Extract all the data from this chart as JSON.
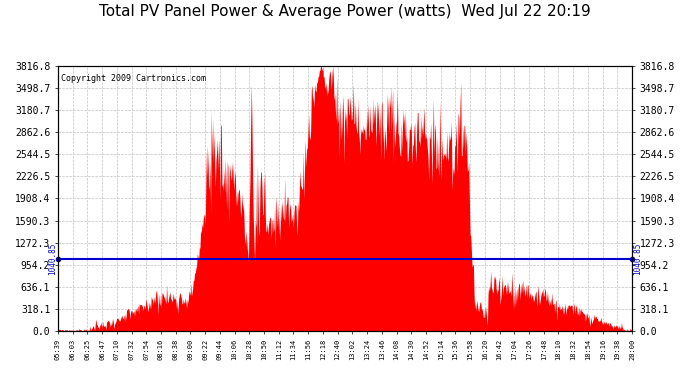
{
  "title": "Total PV Panel Power & Average Power (watts)  Wed Jul 22 20:19",
  "copyright": "Copyright 2009 Cartronics.com",
  "average_power": 1040.85,
  "y_ticks": [
    0.0,
    318.1,
    636.1,
    954.2,
    1272.3,
    1590.3,
    1908.4,
    2226.5,
    2544.5,
    2862.6,
    3180.7,
    3498.7,
    3816.8
  ],
  "y_min": 0.0,
  "y_max": 3816.8,
  "x_labels": [
    "05:39",
    "06:03",
    "06:25",
    "06:47",
    "07:10",
    "07:32",
    "07:54",
    "08:16",
    "08:38",
    "09:00",
    "09:22",
    "09:44",
    "10:06",
    "10:28",
    "10:50",
    "11:12",
    "11:34",
    "11:56",
    "12:18",
    "12:40",
    "13:02",
    "13:24",
    "13:46",
    "14:08",
    "14:30",
    "14:52",
    "15:14",
    "15:36",
    "15:58",
    "16:20",
    "16:42",
    "17:04",
    "17:26",
    "17:48",
    "18:10",
    "18:32",
    "18:54",
    "19:16",
    "19:38",
    "20:00"
  ],
  "fill_color": "#FF0000",
  "avg_line_color": "#0000CC",
  "background_color": "#FFFFFF",
  "grid_color": "#BBBBBB",
  "avg_label_color": "#0000CC",
  "title_fontsize": 11,
  "copyright_fontsize": 6,
  "ytick_fontsize": 7,
  "xtick_fontsize": 5
}
